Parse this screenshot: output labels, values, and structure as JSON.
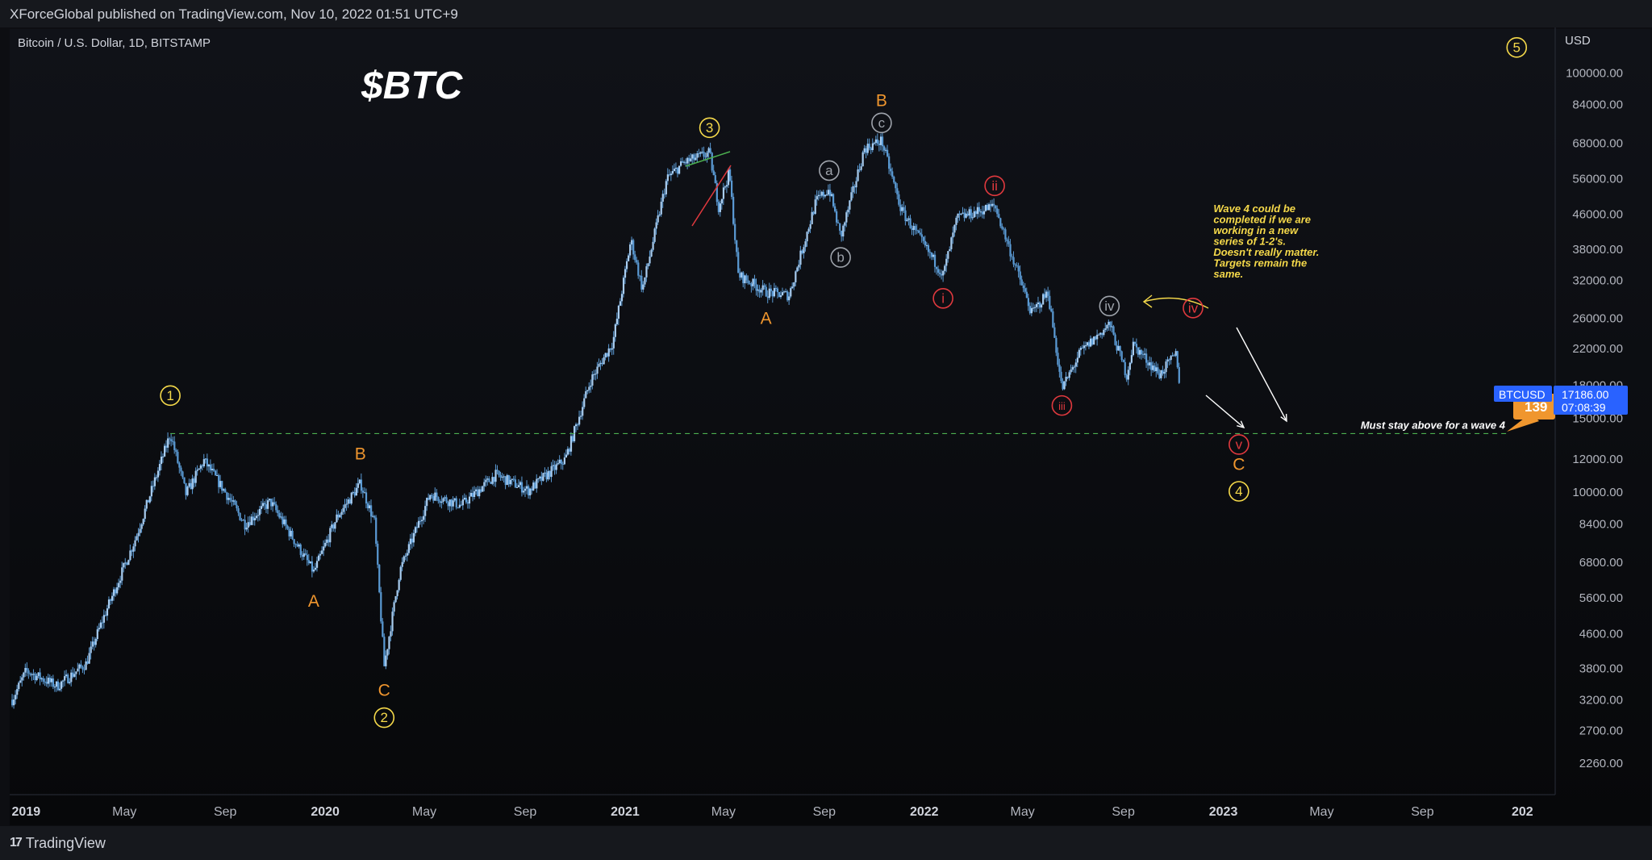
{
  "header": {
    "publisher": "XForceGlobal published on TradingView.com, Nov 10, 2022 01:51 UTC+9"
  },
  "symbol": {
    "description": "Bitcoin / U.S. Dollar, 1D, BITSTAMP",
    "ticker": "BTCUSD",
    "price": "17186.00",
    "countdown": "07:08:39",
    "partial_label": "139"
  },
  "footer": {
    "brand": "TradingView"
  },
  "colors": {
    "background": "#0d0e12",
    "candles": "#5b9bd5",
    "wave_primary": "#f5d94a",
    "abc_labels": "#f0962e",
    "sub_wave_red": "#e0393e",
    "sub_wave_gray": "#9ea3ab",
    "support_line": "#4caf50",
    "price_tag": "#2962ff"
  },
  "chart_data": {
    "type": "line",
    "title": "$BTC",
    "subtitle": "Bitcoin / U.S. Dollar, 1D, BITSTAMP",
    "y_scale": "log",
    "y_unit": "USD",
    "y_ticks": [
      "100000.00",
      "84000.00",
      "68000.00",
      "56000.00",
      "46000.00",
      "38000.00",
      "32000.00",
      "26000.00",
      "22000.00",
      "18000.00",
      "15000.00",
      "12000.00",
      "10000.00",
      "8400.00",
      "6800.00",
      "5600.00",
      "4600.00",
      "3800.00",
      "3200.00",
      "2700.00",
      "2260.00"
    ],
    "x_ticks": [
      "2019",
      "May",
      "Sep",
      "2020",
      "May",
      "Sep",
      "2021",
      "May",
      "Sep",
      "2022",
      "May",
      "Sep",
      "2023",
      "May",
      "Sep",
      "202"
    ],
    "ylim": [
      1900,
      125000
    ],
    "grid": false,
    "series": [
      {
        "values": [
          {
            "x": "2018-12-15",
            "y": 3200
          },
          {
            "x": "2019-01-01",
            "y": 3750
          },
          {
            "x": "2019-02-08",
            "y": 3450
          },
          {
            "x": "2019-03-15",
            "y": 3900
          },
          {
            "x": "2019-04-05",
            "y": 5000
          },
          {
            "x": "2019-05-15",
            "y": 7800
          },
          {
            "x": "2019-06-26",
            "y": 13800
          },
          {
            "x": "2019-07-15",
            "y": 9900
          },
          {
            "x": "2019-08-06",
            "y": 11900
          },
          {
            "x": "2019-09-01",
            "y": 10000
          },
          {
            "x": "2019-09-25",
            "y": 8400
          },
          {
            "x": "2019-10-26",
            "y": 9500
          },
          {
            "x": "2019-12-18",
            "y": 6450
          },
          {
            "x": "2020-01-15",
            "y": 8700
          },
          {
            "x": "2020-02-13",
            "y": 10500
          },
          {
            "x": "2020-03-01",
            "y": 8500
          },
          {
            "x": "2020-03-13",
            "y": 3850
          },
          {
            "x": "2020-04-01",
            "y": 6500
          },
          {
            "x": "2020-05-08",
            "y": 9900
          },
          {
            "x": "2020-06-15",
            "y": 9300
          },
          {
            "x": "2020-07-27",
            "y": 11000
          },
          {
            "x": "2020-09-05",
            "y": 10100
          },
          {
            "x": "2020-10-20",
            "y": 12000
          },
          {
            "x": "2020-11-20",
            "y": 18500
          },
          {
            "x": "2020-12-17",
            "y": 22800
          },
          {
            "x": "2021-01-08",
            "y": 40000
          },
          {
            "x": "2021-01-22",
            "y": 30500
          },
          {
            "x": "2021-02-21",
            "y": 56000
          },
          {
            "x": "2021-03-13",
            "y": 61000
          },
          {
            "x": "2021-04-14",
            "y": 64500
          },
          {
            "x": "2021-04-25",
            "y": 48000
          },
          {
            "x": "2021-05-08",
            "y": 58000
          },
          {
            "x": "2021-05-19",
            "y": 33000
          },
          {
            "x": "2021-06-22",
            "y": 30000
          },
          {
            "x": "2021-07-20",
            "y": 29500
          },
          {
            "x": "2021-08-22",
            "y": 49500
          },
          {
            "x": "2021-09-07",
            "y": 52900
          },
          {
            "x": "2021-09-21",
            "y": 40600
          },
          {
            "x": "2021-10-20",
            "y": 66000
          },
          {
            "x": "2021-11-10",
            "y": 69000
          },
          {
            "x": "2021-12-04",
            "y": 47000
          },
          {
            "x": "2022-01-24",
            "y": 33000
          },
          {
            "x": "2022-02-10",
            "y": 45000
          },
          {
            "x": "2022-03-28",
            "y": 48200
          },
          {
            "x": "2022-05-12",
            "y": 26700
          },
          {
            "x": "2022-06-01",
            "y": 30000
          },
          {
            "x": "2022-06-18",
            "y": 17600
          },
          {
            "x": "2022-07-10",
            "y": 21500
          },
          {
            "x": "2022-08-15",
            "y": 25200
          },
          {
            "x": "2022-09-05",
            "y": 19000
          },
          {
            "x": "2022-09-13",
            "y": 22500
          },
          {
            "x": "2022-10-15",
            "y": 19100
          },
          {
            "x": "2022-11-05",
            "y": 21400
          },
          {
            "x": "2022-11-09",
            "y": 17186
          }
        ]
      }
    ],
    "horizontal_levels": [
      {
        "y": 13800,
        "label": "Must stay above for a wave 4",
        "style": "dashed"
      }
    ],
    "wave_labels": [
      {
        "text": "1",
        "circled": true,
        "color": "wave_primary",
        "x": "2019-06-26",
        "y": 17000
      },
      {
        "text": "2",
        "circled": true,
        "color": "wave_primary",
        "x": "2020-03-13",
        "y": 2900
      },
      {
        "text": "3",
        "circled": true,
        "color": "wave_primary",
        "x": "2021-04-14",
        "y": 74000
      },
      {
        "text": "4",
        "circled": true,
        "color": "wave_primary",
        "x": "2023-01-20",
        "y": 10050
      },
      {
        "text": "5",
        "circled": true,
        "color": "wave_primary",
        "x": "2023-12-25",
        "y": 115000
      },
      {
        "text": "A",
        "circled": false,
        "color": "abc_labels",
        "x": "2019-12-18",
        "y": 5500
      },
      {
        "text": "B",
        "circled": false,
        "color": "abc_labels",
        "x": "2020-02-13",
        "y": 12350
      },
      {
        "text": "C",
        "circled": false,
        "color": "abc_labels",
        "x": "2020-03-13",
        "y": 3370
      },
      {
        "text": "A",
        "circled": false,
        "color": "abc_labels",
        "x": "2021-06-22",
        "y": 26000
      },
      {
        "text": "B",
        "circled": false,
        "color": "abc_labels",
        "x": "2021-11-10",
        "y": 86000
      },
      {
        "text": "C",
        "circled": false,
        "color": "abc_labels",
        "x": "2023-01-20",
        "y": 11650
      },
      {
        "text": "c",
        "circled": true,
        "color": "sub_wave_gray",
        "x": "2021-11-10",
        "y": 76000
      },
      {
        "text": "a",
        "circled": true,
        "color": "sub_wave_gray",
        "x": "2021-09-07",
        "y": 58500
      },
      {
        "text": "b",
        "circled": true,
        "color": "sub_wave_gray",
        "x": "2021-09-21",
        "y": 36300
      },
      {
        "text": "iv",
        "circled": true,
        "color": "sub_wave_gray",
        "x": "2022-08-15",
        "y": 27800
      },
      {
        "text": "i",
        "circled": true,
        "color": "sub_wave_red",
        "x": "2022-01-24",
        "y": 29000
      },
      {
        "text": "ii",
        "circled": true,
        "color": "sub_wave_red",
        "x": "2022-03-28",
        "y": 53800
      },
      {
        "text": "iii",
        "circled": true,
        "color": "sub_wave_red",
        "x": "2022-06-18",
        "y": 16100
      },
      {
        "text": "iv",
        "circled": true,
        "color": "sub_wave_red",
        "x": "2022-11-25",
        "y": 27500
      },
      {
        "text": "v",
        "circled": true,
        "color": "sub_wave_red",
        "x": "2023-01-20",
        "y": 13000
      }
    ],
    "annotations": [
      {
        "text": "Wave 4 could be completed if we are working in a new series of 1-2's. Doesn't really matter. Targets remain the same.",
        "x": "2022-12-20",
        "y": 46500
      }
    ]
  }
}
